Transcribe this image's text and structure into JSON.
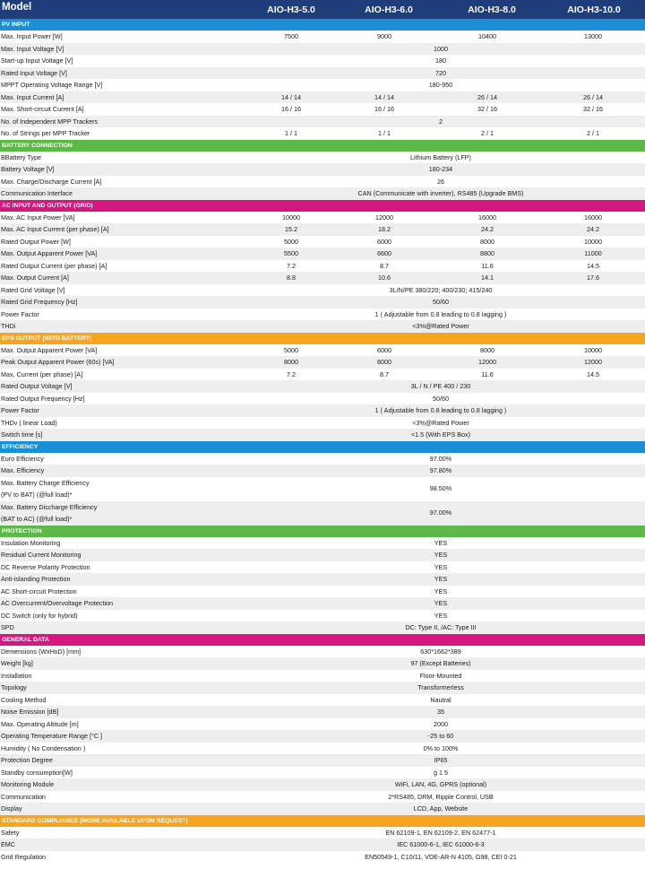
{
  "header": {
    "label": "Model",
    "models": [
      "AIO-H3-5.0",
      "AIO-H3-6.0",
      "AIO-H3-8.0",
      "AIO-H3-10.0"
    ]
  },
  "colors": {
    "header": "#1f3d7a",
    "pv_input": "#1a8fd6",
    "battery_connection": "#5cb947",
    "ac_input_output": "#d5177f",
    "eps_output": "#f7a520",
    "efficiency": "#1a8fd6",
    "protection": "#5cb947",
    "general_data": "#d5177f",
    "standard_compliance": "#f7a520"
  },
  "sections": [
    {
      "key": "pv_input",
      "title": "PV INPUT",
      "rows": [
        {
          "label": "Max. Input Power [W]",
          "values": [
            "7500",
            "9000",
            "10400",
            "13000"
          ]
        },
        {
          "label": "Max. Input Voltage  [V]",
          "span": "1000"
        },
        {
          "label": "Start-up Input Voltage [V]",
          "span": "180"
        },
        {
          "label": "Rated Input Voltage [V]",
          "span": "720"
        },
        {
          "label": "MPPT Operating Voltage Range [V]",
          "span": "180-950"
        },
        {
          "label": "Max. Input Current [A]",
          "values": [
            "14 / 14",
            "14 / 14",
            "26 / 14",
            "26 / 14"
          ]
        },
        {
          "label": "Max. Short-circuit Current [A]",
          "values": [
            "16 / 16",
            "16 / 16",
            "32 / 16",
            "32 / 16"
          ]
        },
        {
          "label": "No. of Independent MPP Trackers",
          "span": "2"
        },
        {
          "label": "No. of Strings per MPP Tracker",
          "values": [
            "1 / 1",
            "1 / 1",
            "2 / 1",
            "2 / 1"
          ]
        }
      ]
    },
    {
      "key": "battery_connection",
      "title": "BATTERY CONNECTION",
      "rows": [
        {
          "label": "BBattery Type",
          "span": "Lithium Battery (LFP)"
        },
        {
          "label": "Battery Voltage [V]",
          "span": "180-234"
        },
        {
          "label": "Max. Charge/Discharge Current [A]",
          "span": "26"
        },
        {
          "label": "Communication Interface",
          "span": "CAN (Communicate with inverter), RS485  (Upgrade BMS)"
        }
      ]
    },
    {
      "key": "ac_input_output",
      "title": "AC INPUT AND OUTPUT (GRID)",
      "rows": [
        {
          "label": "Max. AC Input Power [VA]",
          "values": [
            "10000",
            "12000",
            "16000",
            "16000"
          ]
        },
        {
          "label": "Max. AC Input Current (per phase) [A]",
          "values": [
            "15.2",
            "18.2",
            "24.2",
            "24.2"
          ]
        },
        {
          "label": "Rated Output Power [W]",
          "values": [
            "5000",
            "6000",
            "8000",
            "10000"
          ]
        },
        {
          "label": "Max. Output Apparent Power [VA]",
          "values": [
            "5500",
            "6600",
            "8800",
            "11000"
          ]
        },
        {
          "label": "Rated Output Current (per phase) [A]",
          "values": [
            "7.2",
            "8.7",
            "11.6",
            "14.5"
          ]
        },
        {
          "label": "Max. Output Current [A]",
          "values": [
            "8.8",
            "10.6",
            "14.1",
            "17.6"
          ]
        },
        {
          "label": "Rated Grid Voltage [V]",
          "span": "3L/N/PE  380/220;  400/230;  415/240"
        },
        {
          "label": "Rated Grid Frequency [Hz]",
          "span": "50/60"
        },
        {
          "label": "Power Factor",
          "span": "1 ( Adjustable from 0.8 leading to 0.8 lagging )"
        },
        {
          "label": "THDi",
          "span": "<3%@Rated Power"
        }
      ]
    },
    {
      "key": "eps_output",
      "title": "EPS OUTPUT (WITH BATTERY)",
      "rows": [
        {
          "label": "Max. Output Apparent Power [VA]",
          "values": [
            "5000",
            "6000",
            "8000",
            "10000"
          ]
        },
        {
          "label": "Peak Output Apparent Power (60s) [VA]",
          "values": [
            "8000",
            "8000",
            "12000",
            "12000"
          ]
        },
        {
          "label": "Max. Current (per phase) [A]",
          "values": [
            "7.2",
            "8.7",
            "11.6",
            "14.5"
          ]
        },
        {
          "label": "Rated Output Voltage [V]",
          "span": "3L / N / PE   400 / 230"
        },
        {
          "label": "Rated Output Frequency [Hz]",
          "span": "50/60"
        },
        {
          "label": "Power Factor",
          "span": "1 ( Adjustable from 0.8 leading to 0.8 lagging )"
        },
        {
          "label": "THDv ( linear Load)",
          "span": "<3%@Rated Power"
        },
        {
          "label": "Switch time [s]",
          "span": "<1.5 (With EPS Box)"
        }
      ]
    },
    {
      "key": "efficiency",
      "title": "EFFICIENCY",
      "rows": [
        {
          "label": "Euro Efficiency",
          "span": "97.00%"
        },
        {
          "label": "Max. Efficiency",
          "span": "97.80%"
        },
        {
          "label": "Max. Battery Charge Efficiency",
          "label2": "(PV to BAT) (@full load)*",
          "span": "98.50%",
          "tall": true
        },
        {
          "label": "Max. Battery Discharge Efficiency",
          "label2": "(BAT to AC) (@full load)*",
          "span": "97.00%",
          "tall": true
        }
      ]
    },
    {
      "key": "protection",
      "title": "PROTECTION",
      "rows": [
        {
          "label": "Insulation Monitoring",
          "span": "YES"
        },
        {
          "label": "Residual Current Monitoring",
          "span": "YES"
        },
        {
          "label": "DC Reverse Polarity Protection",
          "span": "YES"
        },
        {
          "label": "Anti-islanding Protection",
          "span": "YES"
        },
        {
          "label": "AC Short-circuit Protection",
          "span": "YES"
        },
        {
          "label": "AC Overcurrent/Overvoltage Protection",
          "span": "YES"
        },
        {
          "label": "DC Switch (only for hybrid)",
          "span": "YES"
        },
        {
          "label": "SPD",
          "span": "DC: Type II, /AC: Type III"
        }
      ]
    },
    {
      "key": "general_data",
      "title": "GENERAL DATA",
      "rows": [
        {
          "label": "Demensions (WxHxD) [mm]",
          "span": "630*1662*389"
        },
        {
          "label": "Weight [kg]",
          "span": "97 (Except Batteries)"
        },
        {
          "label": "Installation",
          "span": "Floor-Mounted"
        },
        {
          "label": "Topology",
          "span": "Transformerless"
        },
        {
          "label": "Cooling Method",
          "span": "Nautral"
        },
        {
          "label": "Noise Emission [dB]",
          "span": "35"
        },
        {
          "label": "Max. Operating Altitude [m]",
          "span": "2000"
        },
        {
          "label": "Operating Temperature Range [°C ]",
          "span": "-25 to 60"
        },
        {
          "label": "Humidity ( No Condensation )",
          "span": "0% to 100%"
        },
        {
          "label": "Protection Degree",
          "span": "IP65"
        },
        {
          "label": "Standby consumption[W]",
          "span": "ǵ 1 5"
        },
        {
          "label": "Monitoring Module",
          "span": "WiFi, LAN, 4G, GPRS (optional)"
        },
        {
          "label": "Communication",
          "span": "2*RS485, DRM, Ripple Control, USB"
        },
        {
          "label": "Display",
          "span": "LCD, App, Website"
        }
      ]
    },
    {
      "key": "standard_compliance",
      "title": "STANDARD COMPLIANCE (MORE AVAILABLE UPON REQUEST)",
      "rows": [
        {
          "label": "Safety",
          "span": "EN 62109-1, EN 62109-2, EN 62477-1"
        },
        {
          "label": "EMC",
          "span": "IEC 61000-6-1, IEC 61000-6-3"
        },
        {
          "label": "Grid Regulation",
          "span": "EN50549-1, C10/11, VDE-AR-N 4105, G98, CEI 0-21"
        }
      ]
    }
  ]
}
